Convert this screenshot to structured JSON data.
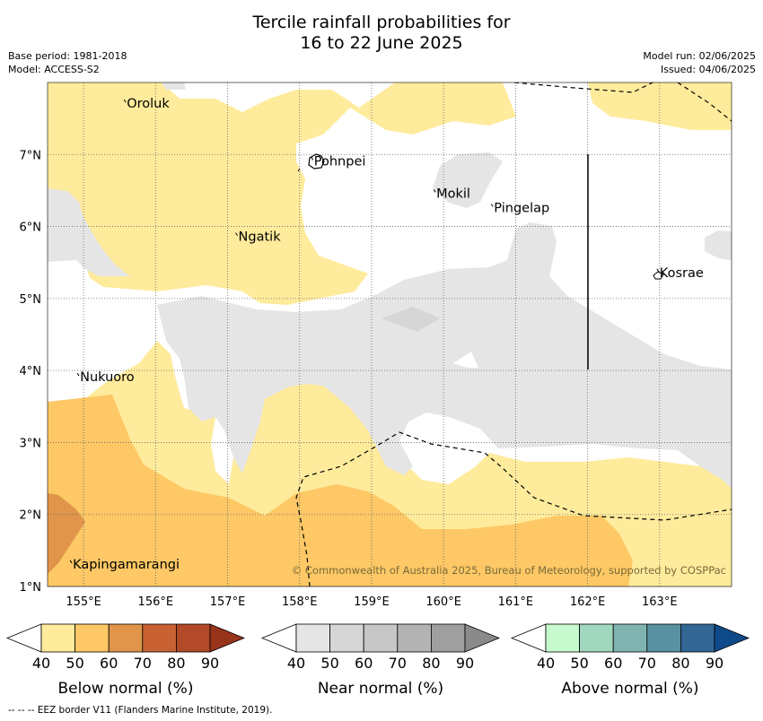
{
  "title_line1": "Tercile rainfall probabilities for",
  "title_line2": "16 to 22 June 2025",
  "meta_left": [
    "Base period: 1981-2018",
    "Model: ACCESS-S2"
  ],
  "meta_right": [
    "Model run: 02/06/2025",
    "Issued: 04/06/2025"
  ],
  "places": [
    {
      "name": "Oroluk",
      "lon": 155.6,
      "lat": 7.65
    },
    {
      "name": "Pohnpei",
      "lon": 158.2,
      "lat": 6.85
    },
    {
      "name": "Mokil",
      "lon": 159.9,
      "lat": 6.4
    },
    {
      "name": "Pingelap",
      "lon": 160.7,
      "lat": 6.2
    },
    {
      "name": "Ngatik",
      "lon": 157.15,
      "lat": 5.8
    },
    {
      "name": "Kosrae",
      "lon": 163.0,
      "lat": 5.3
    },
    {
      "name": "Nukuoro",
      "lon": 154.95,
      "lat": 3.85
    },
    {
      "name": "Kapingamarangi",
      "lon": 154.85,
      "lat": 1.25
    }
  ],
  "x_ticks": [
    {
      "label": "155°E",
      "lon": 155
    },
    {
      "label": "156°E",
      "lon": 156
    },
    {
      "label": "157°E",
      "lon": 157
    },
    {
      "label": "158°E",
      "lon": 158
    },
    {
      "label": "159°E",
      "lon": 159
    },
    {
      "label": "160°E",
      "lon": 160
    },
    {
      "label": "161°E",
      "lon": 161
    },
    {
      "label": "162°E",
      "lon": 162
    },
    {
      "label": "163°E",
      "lon": 163
    }
  ],
  "y_ticks": [
    {
      "label": "7°N",
      "lat": 7
    },
    {
      "label": "6°N",
      "lat": 6
    },
    {
      "label": "5°N",
      "lat": 5
    },
    {
      "label": "4°N",
      "lat": 4
    },
    {
      "label": "3°N",
      "lat": 3
    },
    {
      "label": "2°N",
      "lat": 2
    },
    {
      "label": "1°N",
      "lat": 1
    }
  ],
  "extent": {
    "lon_min": 154.5,
    "lon_max": 164.0,
    "lat_min": 1.0,
    "lat_max": 8.0
  },
  "copyright": "© Commonwealth of Australia 2025, Bureau of Meteorology, supported by COSPPac",
  "colorbars": [
    {
      "label": "Below normal (%)",
      "ticks": [
        "40",
        "50",
        "60",
        "70",
        "80",
        "90"
      ],
      "colors": [
        "#ffeb9c",
        "#fdc865",
        "#e0954a",
        "#c96232",
        "#b24a29",
        "#97341b"
      ]
    },
    {
      "label": "Near normal (%)",
      "ticks": [
        "40",
        "50",
        "60",
        "70",
        "80",
        "90"
      ],
      "colors": [
        "#e5e5e5",
        "#d6d6d6",
        "#c7c7c7",
        "#b3b3b3",
        "#9f9f9f",
        "#8a8a8a"
      ]
    },
    {
      "label": "Above normal (%)",
      "ticks": [
        "40",
        "50",
        "60",
        "70",
        "80",
        "90"
      ],
      "colors": [
        "#c7fbcf",
        "#a1d7bf",
        "#80b4b0",
        "#5a91a0",
        "#326694",
        "#0f4b8b"
      ]
    }
  ],
  "footnote": "--  --  -- EEZ border V11 (Flanders Marine Institute, 2019).",
  "colors": {
    "below_40": "#ffeb9c",
    "below_50": "#fdc865",
    "below_60": "#e0954a",
    "near_40": "#e5e5e5",
    "white": "#ffffff"
  }
}
